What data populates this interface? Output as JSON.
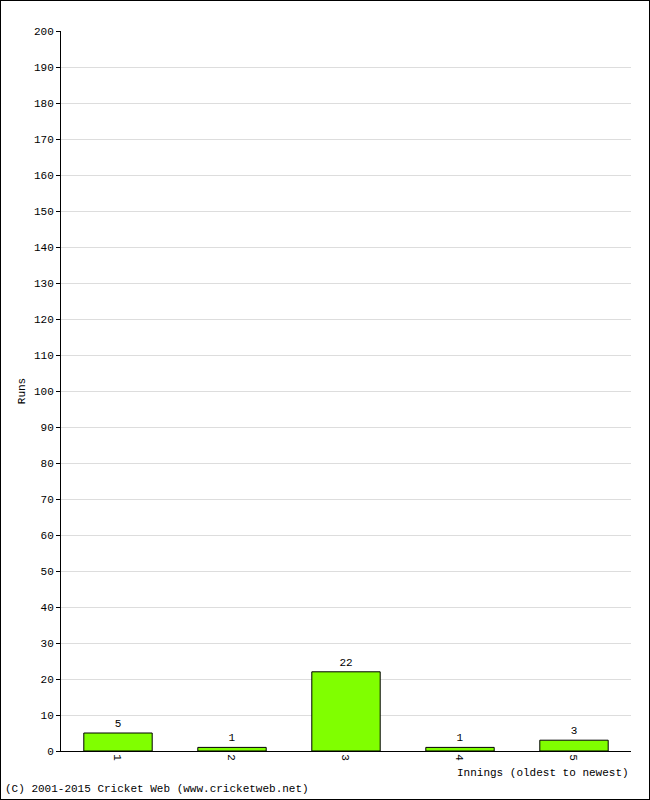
{
  "chart_data": {
    "type": "bar",
    "x_label": "Innings (oldest to newest)",
    "y_label": "Runs",
    "annotations": [
      "(C) 2001-2015 Cricket Web (www.cricketweb.net)"
    ],
    "categories": [
      "1",
      "2",
      "3",
      "4",
      "5"
    ],
    "values": [
      5,
      1,
      22,
      1,
      3
    ],
    "color": "#80ff00",
    "ylim": [
      0,
      200
    ],
    "yticks": [
      0,
      10,
      20,
      30,
      40,
      50,
      60,
      70,
      80,
      90,
      100,
      110,
      120,
      130,
      140,
      150,
      160,
      170,
      180,
      190,
      200
    ],
    "grid": true,
    "data_labels": true
  }
}
